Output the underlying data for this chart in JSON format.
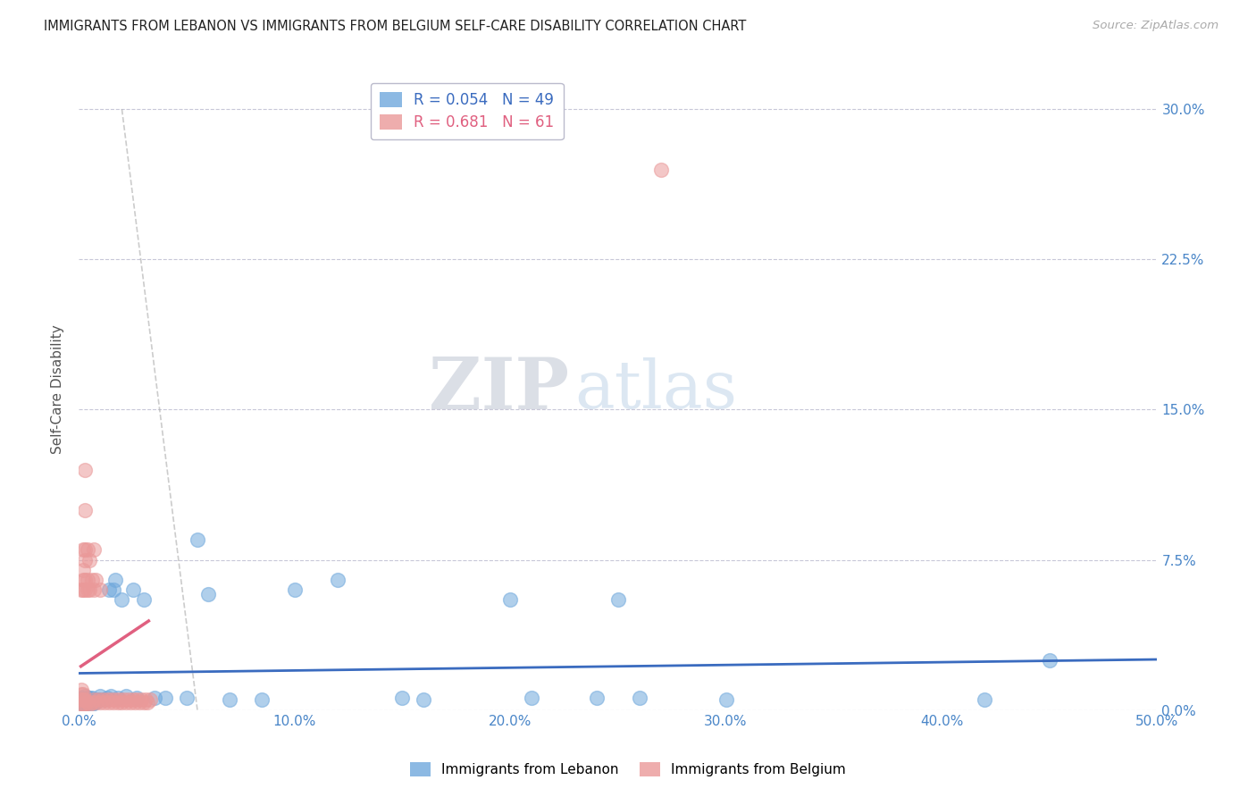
{
  "title": "IMMIGRANTS FROM LEBANON VS IMMIGRANTS FROM BELGIUM SELF-CARE DISABILITY CORRELATION CHART",
  "source": "Source: ZipAtlas.com",
  "ylabel": "Self-Care Disability",
  "legend_label_1": "Immigrants from Lebanon",
  "legend_label_2": "Immigrants from Belgium",
  "R1": 0.054,
  "N1": 49,
  "R2": 0.681,
  "N2": 61,
  "color1": "#6fa8dc",
  "color2": "#ea9999",
  "trendline1_color": "#3a6bbf",
  "trendline2_color": "#e06080",
  "xlim": [
    0.0,
    0.5
  ],
  "ylim": [
    0.0,
    0.32
  ],
  "xticks": [
    0.0,
    0.1,
    0.2,
    0.3,
    0.4,
    0.5
  ],
  "yticks": [
    0.0,
    0.075,
    0.15,
    0.225,
    0.3
  ],
  "tick_color": "#4a86c8",
  "grid_color": "#c8c8d8",
  "watermark_zip": "ZIP",
  "watermark_atlas": "atlas",
  "lebanon_x": [
    0.001,
    0.001,
    0.002,
    0.002,
    0.003,
    0.003,
    0.003,
    0.004,
    0.004,
    0.005,
    0.005,
    0.006,
    0.006,
    0.007,
    0.008,
    0.009,
    0.01,
    0.01,
    0.012,
    0.013,
    0.014,
    0.015,
    0.016,
    0.017,
    0.018,
    0.02,
    0.022,
    0.025,
    0.027,
    0.03,
    0.035,
    0.04,
    0.05,
    0.055,
    0.06,
    0.07,
    0.085,
    0.1,
    0.12,
    0.15,
    0.16,
    0.2,
    0.21,
    0.24,
    0.25,
    0.26,
    0.3,
    0.42,
    0.45
  ],
  "lebanon_y": [
    0.004,
    0.006,
    0.003,
    0.005,
    0.003,
    0.005,
    0.007,
    0.004,
    0.006,
    0.004,
    0.006,
    0.003,
    0.006,
    0.005,
    0.004,
    0.005,
    0.005,
    0.007,
    0.005,
    0.006,
    0.06,
    0.007,
    0.06,
    0.065,
    0.006,
    0.055,
    0.007,
    0.06,
    0.006,
    0.055,
    0.006,
    0.006,
    0.006,
    0.085,
    0.058,
    0.005,
    0.005,
    0.06,
    0.065,
    0.006,
    0.005,
    0.055,
    0.006,
    0.006,
    0.055,
    0.006,
    0.005,
    0.005,
    0.025
  ],
  "belgium_x": [
    0.001,
    0.001,
    0.001,
    0.001,
    0.001,
    0.002,
    0.002,
    0.002,
    0.002,
    0.002,
    0.002,
    0.002,
    0.003,
    0.003,
    0.003,
    0.003,
    0.003,
    0.003,
    0.003,
    0.003,
    0.004,
    0.004,
    0.004,
    0.004,
    0.005,
    0.005,
    0.005,
    0.006,
    0.006,
    0.007,
    0.007,
    0.007,
    0.008,
    0.008,
    0.009,
    0.01,
    0.01,
    0.011,
    0.012,
    0.013,
    0.014,
    0.015,
    0.016,
    0.017,
    0.018,
    0.019,
    0.02,
    0.021,
    0.022,
    0.023,
    0.024,
    0.025,
    0.026,
    0.027,
    0.028,
    0.029,
    0.03,
    0.031,
    0.032,
    0.033,
    0.27
  ],
  "belgium_y": [
    0.003,
    0.005,
    0.008,
    0.01,
    0.06,
    0.003,
    0.005,
    0.008,
    0.06,
    0.065,
    0.07,
    0.08,
    0.003,
    0.005,
    0.06,
    0.065,
    0.075,
    0.08,
    0.1,
    0.12,
    0.004,
    0.06,
    0.065,
    0.08,
    0.003,
    0.06,
    0.075,
    0.004,
    0.065,
    0.005,
    0.06,
    0.08,
    0.004,
    0.065,
    0.005,
    0.004,
    0.06,
    0.005,
    0.004,
    0.005,
    0.004,
    0.005,
    0.004,
    0.005,
    0.004,
    0.005,
    0.004,
    0.005,
    0.004,
    0.005,
    0.004,
    0.005,
    0.004,
    0.005,
    0.004,
    0.005,
    0.004,
    0.005,
    0.004,
    0.005,
    0.27
  ]
}
